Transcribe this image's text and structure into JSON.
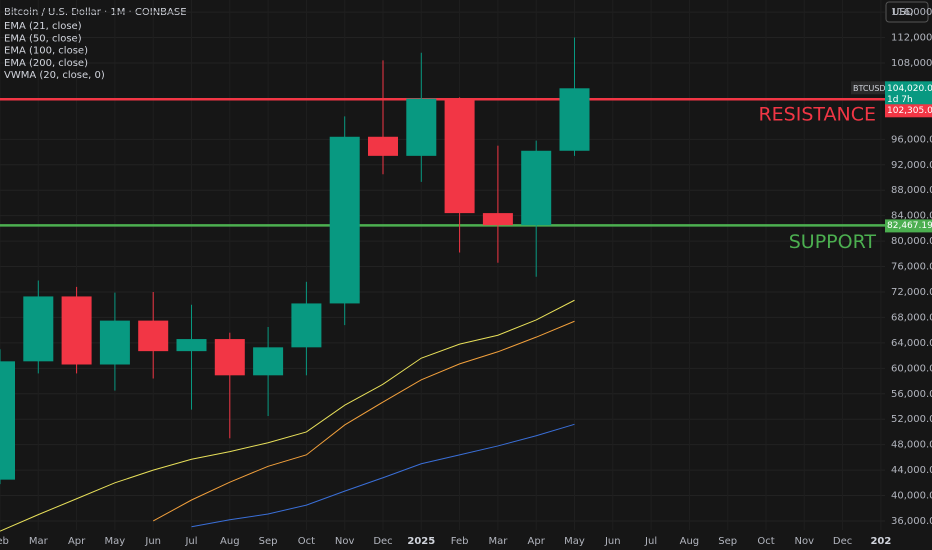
{
  "chart_data": {
    "type": "candlestick",
    "title": "Bitcoin / U.S. Dollar · 1M · COINBASE",
    "currency": "USD",
    "symbol": "BTCUSD",
    "categories": [
      "Feb",
      "Mar",
      "Apr",
      "May",
      "Jun",
      "Jul",
      "Aug",
      "Sep",
      "Oct",
      "Nov",
      "Dec",
      "2025",
      "Feb",
      "Mar",
      "Apr",
      "May",
      "Jun",
      "Jul",
      "Aug",
      "Sep",
      "Oct",
      "Nov",
      "Dec",
      "202"
    ],
    "open": [
      42500,
      61100,
      71300,
      60600,
      67500,
      62700,
      64600,
      58900,
      63300,
      70200,
      96400,
      93400,
      102400,
      84400,
      82500,
      94200,
      null,
      null,
      null,
      null,
      null,
      null,
      null,
      null
    ],
    "high": [
      63000,
      73800,
      72800,
      71900,
      72000,
      70000,
      65600,
      66500,
      73600,
      99600,
      108400,
      109600,
      102600,
      95000,
      95800,
      112000,
      null,
      null,
      null,
      null,
      null,
      null,
      null,
      null
    ],
    "low": [
      41800,
      59200,
      59200,
      56500,
      58400,
      53500,
      49000,
      52500,
      58900,
      66800,
      90500,
      89300,
      78200,
      76600,
      74400,
      93400,
      null,
      null,
      null,
      null,
      null,
      null,
      null,
      null
    ],
    "close": [
      61100,
      71300,
      60600,
      67500,
      62700,
      64600,
      58900,
      63300,
      70200,
      96400,
      93400,
      102400,
      84400,
      82500,
      94200,
      104020,
      null,
      null,
      null,
      null,
      null,
      null,
      null,
      null
    ],
    "up_color": "#089981",
    "down_color": "#f23645",
    "series": [
      {
        "name": "EMA (21, close)",
        "color": "#e8e05a",
        "values": [
          34400,
          37000,
          39500,
          42000,
          44000,
          45700,
          46900,
          48300,
          50000,
          54200,
          57500,
          61600,
          63800,
          65200,
          67600,
          70700,
          null,
          null,
          null,
          null,
          null,
          null,
          null,
          null
        ]
      },
      {
        "name": "EMA (50, close)",
        "color": "#f2a03c",
        "values": [
          null,
          null,
          null,
          null,
          36000,
          39300,
          42100,
          44600,
          46400,
          51100,
          54700,
          58200,
          60700,
          62600,
          64900,
          67400,
          null,
          null,
          null,
          null,
          null,
          null,
          null,
          null
        ]
      },
      {
        "name": "EMA (100, close)",
        "color": "#3a6fd8",
        "values": [
          null,
          null,
          null,
          null,
          null,
          35100,
          36200,
          37100,
          38500,
          40700,
          42800,
          45000,
          46400,
          47800,
          49400,
          51200,
          null,
          null,
          null,
          null,
          null,
          null,
          null,
          null
        ]
      },
      {
        "name": "EMA (200, close)",
        "color": "#9c27b0",
        "values": [
          null,
          null,
          null,
          null,
          null,
          null,
          null,
          null,
          null,
          null,
          null,
          null,
          null,
          null,
          null,
          null,
          null,
          null,
          null,
          null,
          null,
          null,
          null,
          null
        ]
      },
      {
        "name": "VWMA (20, close, 0)",
        "color": "#2196f3",
        "values": [
          null,
          null,
          null,
          null,
          null,
          null,
          null,
          null,
          null,
          null,
          null,
          null,
          null,
          null,
          null,
          null,
          null,
          null,
          null,
          null,
          null,
          null,
          null,
          null
        ]
      }
    ],
    "ylim": [
      31440,
      117900
    ],
    "yticks": [
      {
        "value": 116000,
        "label": "116,000.00"
      },
      {
        "value": 112000,
        "label": "112,000.00"
      },
      {
        "value": 108000,
        "label": "108,000.00"
      },
      {
        "value": 96000,
        "label": "96,000.00"
      },
      {
        "value": 92000,
        "label": "92,000.00"
      },
      {
        "value": 88000,
        "label": "88,000.00"
      },
      {
        "value": 84000,
        "label": "84,000.00"
      },
      {
        "value": 80000,
        "label": "80,000.00"
      },
      {
        "value": 76000,
        "label": "76,000.00"
      },
      {
        "value": 72000,
        "label": "72,000.00"
      },
      {
        "value": 68000,
        "label": "68,000.00"
      },
      {
        "value": 64000,
        "label": "64,000.00"
      },
      {
        "value": 60000,
        "label": "60,000.00"
      },
      {
        "value": 56000,
        "label": "56,000.00"
      },
      {
        "value": 52000,
        "label": "52,000.00"
      },
      {
        "value": 48000,
        "label": "48,000.00"
      },
      {
        "value": 44000,
        "label": "44,000.00"
      },
      {
        "value": 40000,
        "label": "40,000.00"
      },
      {
        "value": 36000,
        "label": "36,000.00"
      }
    ],
    "grid": true,
    "last_price": {
      "value": 104020,
      "label": "104,020.00",
      "countdown": "1d 7h"
    },
    "levels": [
      {
        "value": 102305.05,
        "label": "102,305.05",
        "text": "RESISTANCE",
        "color": "#f23645"
      },
      {
        "value": 82467.19,
        "label": "82,467.19",
        "text": "SUPPORT",
        "color": "#4caf50"
      }
    ]
  }
}
